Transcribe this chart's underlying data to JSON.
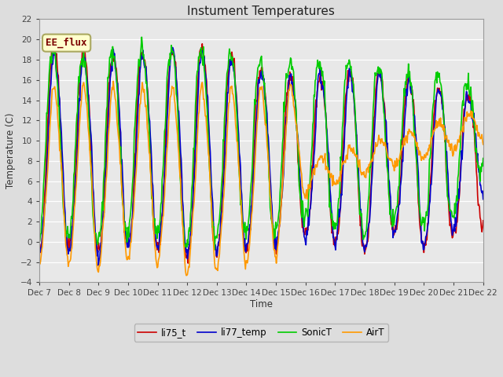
{
  "title": "Instument Temperatures",
  "ylabel": "Temperature (C)",
  "xlabel": "Time",
  "ylim": [
    -4,
    22
  ],
  "yticks": [
    -4,
    -2,
    0,
    2,
    4,
    6,
    8,
    10,
    12,
    14,
    16,
    18,
    20,
    22
  ],
  "xtick_labels": [
    "Dec 7",
    "Dec 8",
    "Dec 9",
    "Dec 10",
    "Dec 11",
    "Dec 12",
    "Dec 13",
    "Dec 14",
    "Dec 15",
    "Dec 16",
    "Dec 17",
    "Dec 18",
    "Dec 19",
    "Dec 20",
    "Dec 21",
    "Dec 22"
  ],
  "annotation": "EE_flux",
  "colors": {
    "li75_t": "#cc0000",
    "li77_temp": "#0000cc",
    "SonicT": "#00cc00",
    "AirT": "#ff9900"
  },
  "legend_labels": [
    "li75_t",
    "li77_temp",
    "SonicT",
    "AirT"
  ],
  "linewidth": 1.2
}
